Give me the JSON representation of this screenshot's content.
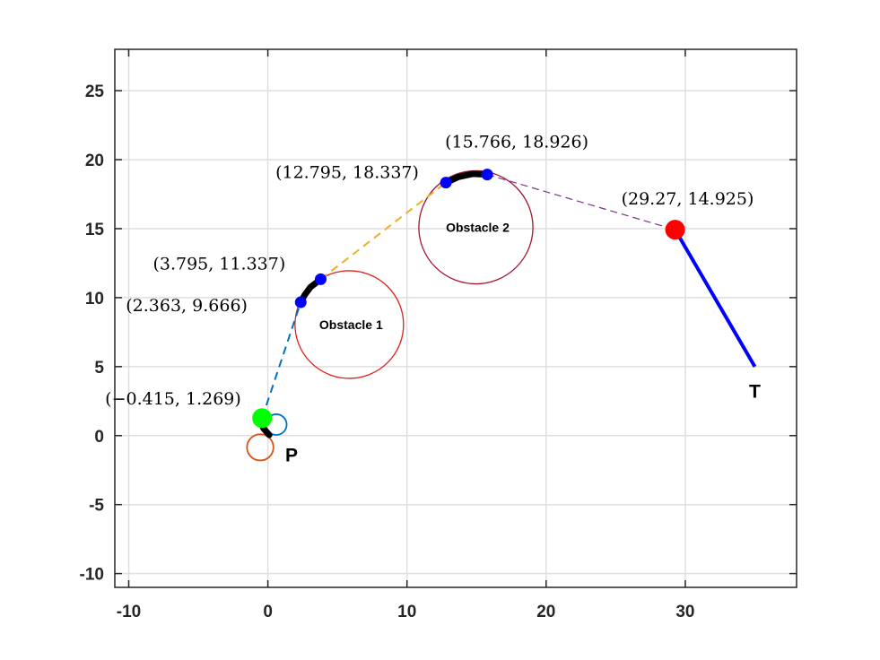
{
  "chart_data": {
    "type": "scatter",
    "title": "",
    "xlabel": "",
    "ylabel": "",
    "xlim": [
      -11,
      38
    ],
    "ylim": [
      -11,
      28
    ],
    "xticks": [
      -10,
      0,
      10,
      20,
      30
    ],
    "yticks": [
      -10,
      -5,
      0,
      5,
      10,
      15,
      20,
      25
    ],
    "xtick_labels": [
      "-10",
      "0",
      "10",
      "20",
      "30"
    ],
    "ytick_labels": [
      "-10",
      "-5",
      "0",
      "5",
      "10",
      "15",
      "20",
      "25"
    ],
    "grid": true,
    "obstacles": [
      {
        "label": "Obstacle 1",
        "center": [
          5.85,
          8.05
        ],
        "radius": 3.9,
        "color": "#e0201b"
      },
      {
        "label": "Obstacle 2",
        "center": [
          14.95,
          15.1
        ],
        "radius": 4.1,
        "color": "#a2142f"
      }
    ],
    "start_circles": [
      {
        "center": [
          0.6,
          0.8
        ],
        "radius": 0.75,
        "color": "#0072bd"
      },
      {
        "center": [
          -0.55,
          -0.85
        ],
        "radius": 0.95,
        "color": "#d95319"
      }
    ],
    "arcs": [
      {
        "points": [
          [
            -0.6,
            1.1
          ],
          [
            -0.3,
            0.5
          ],
          [
            0.1,
            0.05
          ]
        ],
        "color": "#000000"
      },
      {
        "points": [
          [
            2.363,
            9.666
          ],
          [
            2.65,
            10.2
          ],
          [
            3.05,
            10.75
          ],
          [
            3.795,
            11.337
          ]
        ],
        "color": "#000000"
      },
      {
        "points": [
          [
            12.795,
            18.337
          ],
          [
            13.7,
            18.75
          ],
          [
            14.7,
            18.97
          ],
          [
            15.766,
            18.926
          ]
        ],
        "color": "#000000"
      }
    ],
    "tangent_segments": [
      {
        "from": [
          -0.415,
          1.269
        ],
        "to": [
          2.363,
          9.666
        ],
        "color": "#0072bd",
        "style": "dashed"
      },
      {
        "from": [
          3.795,
          11.337
        ],
        "to": [
          12.795,
          18.337
        ],
        "color": "#edb120",
        "style": "dashed"
      },
      {
        "from": [
          15.766,
          18.926
        ],
        "to": [
          29.27,
          14.925
        ],
        "color": "#7e2f8e",
        "style": "dashed"
      }
    ],
    "final_segment": {
      "from": [
        29.27,
        14.925
      ],
      "to": [
        35,
        5
      ],
      "color": "#0000ff"
    },
    "points": [
      {
        "x": -0.415,
        "y": 1.269,
        "label": "(−0.415, 1.269)",
        "color": "#00ff00",
        "size": "large"
      },
      {
        "x": 2.363,
        "y": 9.666,
        "label": "(2.363, 9.666)",
        "color": "#0000ff",
        "size": "small"
      },
      {
        "x": 3.795,
        "y": 11.337,
        "label": "(3.795, 11.337)",
        "color": "#0000ff",
        "size": "small"
      },
      {
        "x": 12.795,
        "y": 18.337,
        "label": "(12.795, 18.337)",
        "color": "#0000ff",
        "size": "small"
      },
      {
        "x": 15.766,
        "y": 18.926,
        "label": "(15.766, 18.926)",
        "color": "#0000ff",
        "size": "small"
      },
      {
        "x": 29.27,
        "y": 14.925,
        "label": "(29.27, 14.925)",
        "color": "#ff0000",
        "size": "large"
      }
    ],
    "text_labels": [
      {
        "text": "P",
        "x": 1.7,
        "y": -1.4
      },
      {
        "text": "T",
        "x": 35.0,
        "y": 3.2
      }
    ]
  }
}
